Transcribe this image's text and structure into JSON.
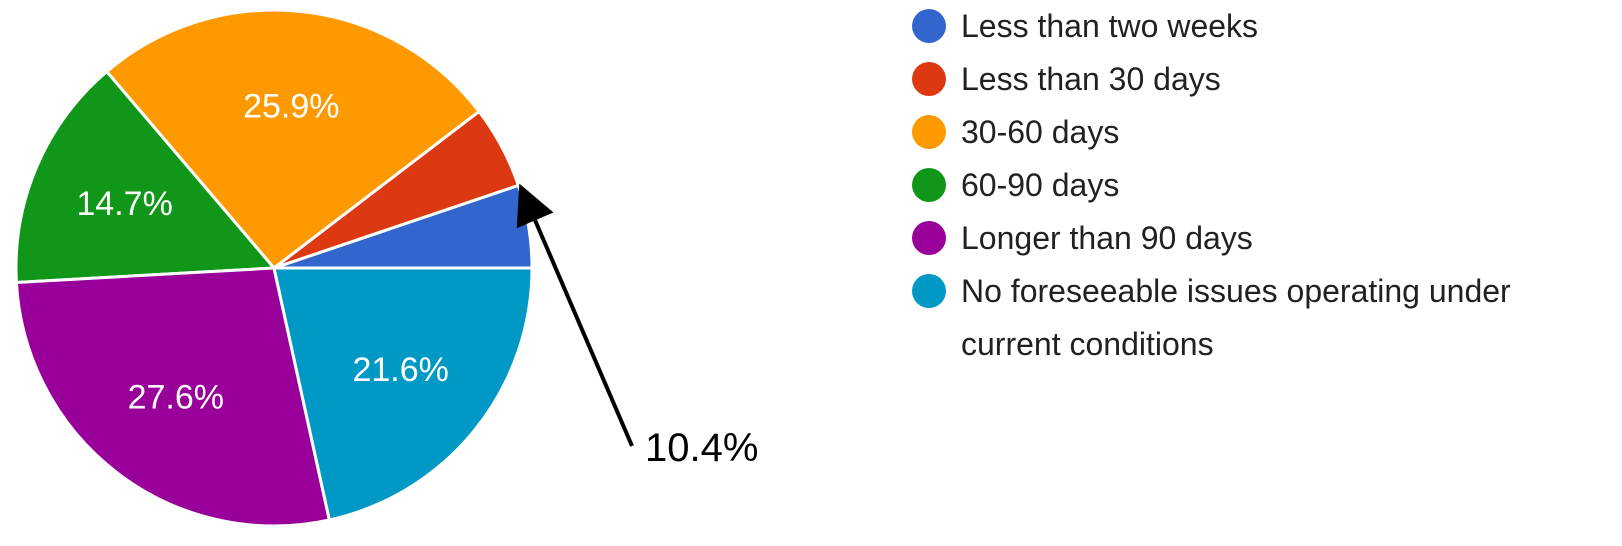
{
  "chart_data": {
    "type": "pie",
    "title": "",
    "start": "3 o'clock, counterclockwise",
    "legend_position": "right",
    "slices": [
      {
        "name": "Less than two weeks",
        "value": 5.2,
        "color": "#3366cc",
        "label": ""
      },
      {
        "name": "Less than 30 days",
        "value": 5.2,
        "color": "#dc3912",
        "label": ""
      },
      {
        "name": "30-60 days",
        "value": 25.9,
        "color": "#ff9900",
        "label": "25.9%"
      },
      {
        "name": "60-90 days",
        "value": 14.7,
        "color": "#109618",
        "label": "14.7%"
      },
      {
        "name": "Longer than 90 days",
        "value": 27.6,
        "color": "#990099",
        "label": "27.6%"
      },
      {
        "name": "No foreseeable issues operating under current conditions",
        "value": 21.6,
        "color": "#0099c6",
        "label": "21.6%"
      }
    ],
    "annotation": {
      "text": "10.4%",
      "points_to": [
        "Less than two weeks",
        "Less than 30 days"
      ]
    },
    "legend": [
      {
        "lines": [
          "Less than two weeks"
        ],
        "color": "#3366cc"
      },
      {
        "lines": [
          "Less than 30 days"
        ],
        "color": "#dc3912"
      },
      {
        "lines": [
          "30-60 days"
        ],
        "color": "#ff9900"
      },
      {
        "lines": [
          "60-90 days"
        ],
        "color": "#109618"
      },
      {
        "lines": [
          "Longer than 90 days"
        ],
        "color": "#990099"
      },
      {
        "lines": [
          "No foreseeable issues operating under",
          "current conditions"
        ],
        "color": "#0099c6"
      }
    ]
  }
}
